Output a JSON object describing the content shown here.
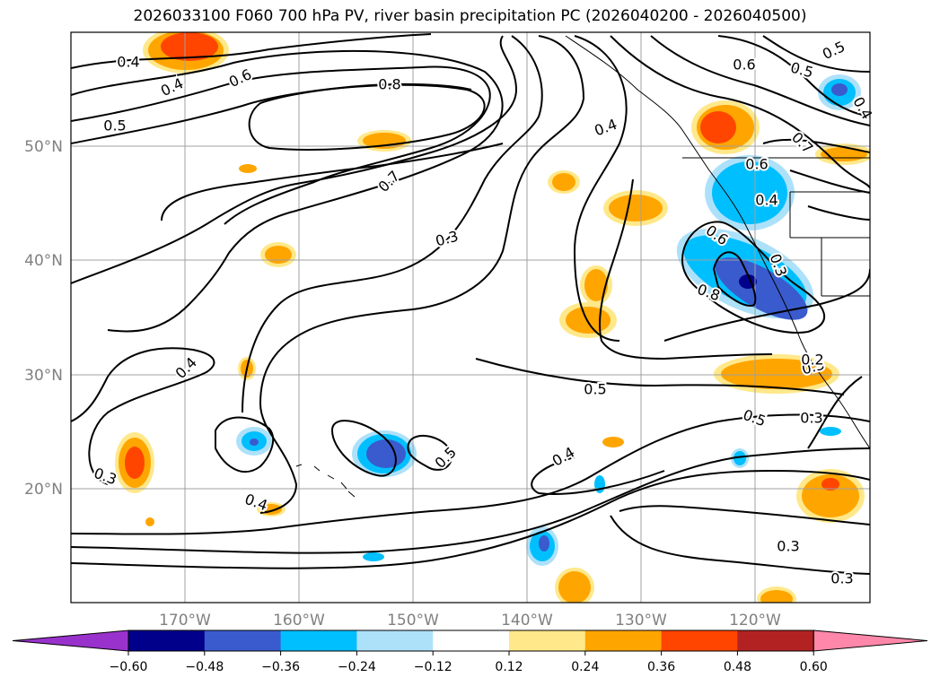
{
  "title": "2026033100 F060 700 hPa PV, river basin precipitation PC (2026040200 - 2026040500)",
  "map": {
    "lon_range": [
      -180,
      -110
    ],
    "lat_range": [
      10,
      60
    ],
    "lat_labels": [
      "50°N",
      "40°N",
      "30°N",
      "20°N"
    ],
    "lon_labels": [
      "170°W",
      "160°W",
      "150°W",
      "140°W",
      "130°W",
      "120°W"
    ],
    "contour_labels": [
      "0.4",
      "0.4",
      "0.6",
      "0.8",
      "0.5",
      "0.7",
      "0.3",
      "0.4",
      "0.4",
      "0.5",
      "0.6",
      "0.5",
      "0.7",
      "0.6",
      "0.4",
      "0.6",
      "0.3",
      "0.8",
      "0.3",
      "0.4",
      "0.5",
      "0.4",
      "0.5",
      "0.3",
      "0.5",
      "0.3",
      "0.3",
      "0.3",
      "0.2",
      "0.4"
    ]
  },
  "colorbar": {
    "ticks": [
      "−0.60",
      "−0.48",
      "−0.36",
      "−0.24",
      "−0.12",
      "0.12",
      "0.24",
      "0.36",
      "0.48",
      "0.60"
    ],
    "colors": [
      "#9932cc",
      "#00008b",
      "#3a5bcd",
      "#00bfff",
      "#ade1fa",
      "#ffffff",
      "#ffe88a",
      "#ffa500",
      "#ff4500",
      "#b22222",
      "#ff88aa"
    ]
  }
}
